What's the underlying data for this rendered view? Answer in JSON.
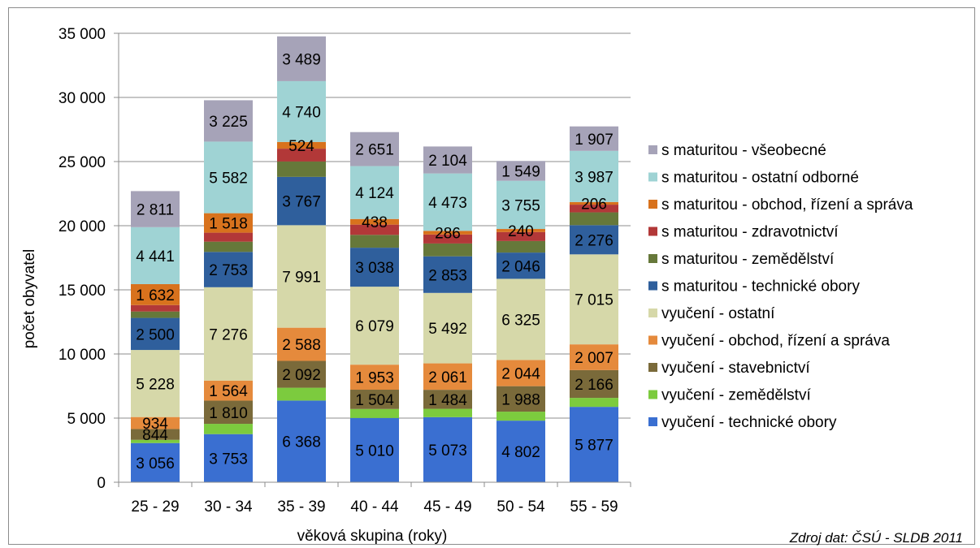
{
  "chart_data": {
    "type": "bar",
    "stacked": true,
    "categories": [
      "25 - 29",
      "30 - 34",
      "35 - 39",
      "40 - 44",
      "45 - 49",
      "50 - 54",
      "55 - 59"
    ],
    "xlabel": "věková skupina (roky)",
    "ylabel": "počet obyvatel",
    "ylim": [
      0,
      35000
    ],
    "yticks": [
      0,
      5000,
      10000,
      15000,
      20000,
      25000,
      30000,
      35000
    ],
    "ytick_labels": [
      "0",
      "5 000",
      "10 000",
      "15 000",
      "20 000",
      "25 000",
      "30 000",
      "35 000"
    ],
    "grid": true,
    "legend_position": "right",
    "source_note": "Zdroj dat: ČSÚ - SLDB 2011",
    "series": [
      {
        "name": "vyučení - technické obory",
        "color": "#3a6fd1",
        "values": [
          3056,
          3753,
          6368,
          5010,
          5073,
          4802,
          5877
        ],
        "labels": [
          "3 056",
          "3 753",
          "6 368",
          "5 010",
          "5 073",
          "4 802",
          "5 877"
        ]
      },
      {
        "name": "vyučení - zemědělství",
        "color": "#7ccb3e",
        "values": [
          250,
          800,
          1000,
          700,
          650,
          700,
          700
        ],
        "labels": [
          null,
          null,
          null,
          null,
          null,
          null,
          null
        ]
      },
      {
        "name": "vyučení - stavebnictví",
        "color": "#7a6a3a",
        "values": [
          844,
          1810,
          2092,
          1504,
          1484,
          1988,
          2166
        ],
        "labels": [
          "844",
          "1 810",
          "2 092",
          "1 504",
          "1 484",
          "1 988",
          "2 166"
        ]
      },
      {
        "name": "vyučení - obchod, řízení a správa",
        "color": "#e58a3c",
        "values": [
          934,
          1564,
          2588,
          1953,
          2061,
          2044,
          2007
        ],
        "labels": [
          "934",
          "1 564",
          "2 588",
          "1 953",
          "2 061",
          "2 044",
          "2 007"
        ]
      },
      {
        "name": "vyučení - ostatní",
        "color": "#d6d8a9",
        "values": [
          5228,
          7276,
          7991,
          6079,
          5492,
          6325,
          7015
        ],
        "labels": [
          "5 228",
          "7 276",
          "7 991",
          "6 079",
          "5 492",
          "6 325",
          "7 015"
        ]
      },
      {
        "name": "s maturitou - technické obory",
        "color": "#2f5f9c",
        "values": [
          2500,
          2753,
          3767,
          3038,
          2853,
          2046,
          2276
        ],
        "labels": [
          "2 500",
          "2 753",
          "3 767",
          "3 038",
          "2 853",
          "2 046",
          "2 276"
        ]
      },
      {
        "name": "s maturitou - zemědělství",
        "color": "#66783a",
        "values": [
          500,
          800,
          1200,
          1000,
          1000,
          900,
          1000
        ],
        "labels": [
          null,
          null,
          null,
          null,
          null,
          null,
          null
        ]
      },
      {
        "name": "s maturitou - zdravotnictví",
        "color": "#b23838",
        "values": [
          500,
          700,
          1000,
          800,
          700,
          700,
          600
        ],
        "labels": [
          null,
          null,
          null,
          null,
          null,
          null,
          null
        ]
      },
      {
        "name": "s maturitou - obchod, řízení a správa",
        "color": "#d8721d",
        "values": [
          1632,
          1518,
          524,
          438,
          286,
          240,
          206
        ],
        "labels": [
          "1 632",
          "1 518",
          "524",
          "438",
          "286",
          "240",
          "206"
        ]
      },
      {
        "name": "s maturitou - ostatní odborné",
        "color": "#9fd3d4",
        "values": [
          4441,
          5582,
          4740,
          4124,
          4473,
          3755,
          3987
        ],
        "labels": [
          "4 441",
          "5 582",
          "4 740",
          "4 124",
          "4 473",
          "3 755",
          "3 987"
        ]
      },
      {
        "name": "s maturitou - všeobecné",
        "color": "#a6a3b8",
        "values": [
          2811,
          3225,
          3489,
          2651,
          2104,
          1549,
          1907
        ],
        "labels": [
          "2 811",
          "3 225",
          "3 489",
          "2 651",
          "2 104",
          "1 549",
          "1 907"
        ]
      }
    ]
  }
}
